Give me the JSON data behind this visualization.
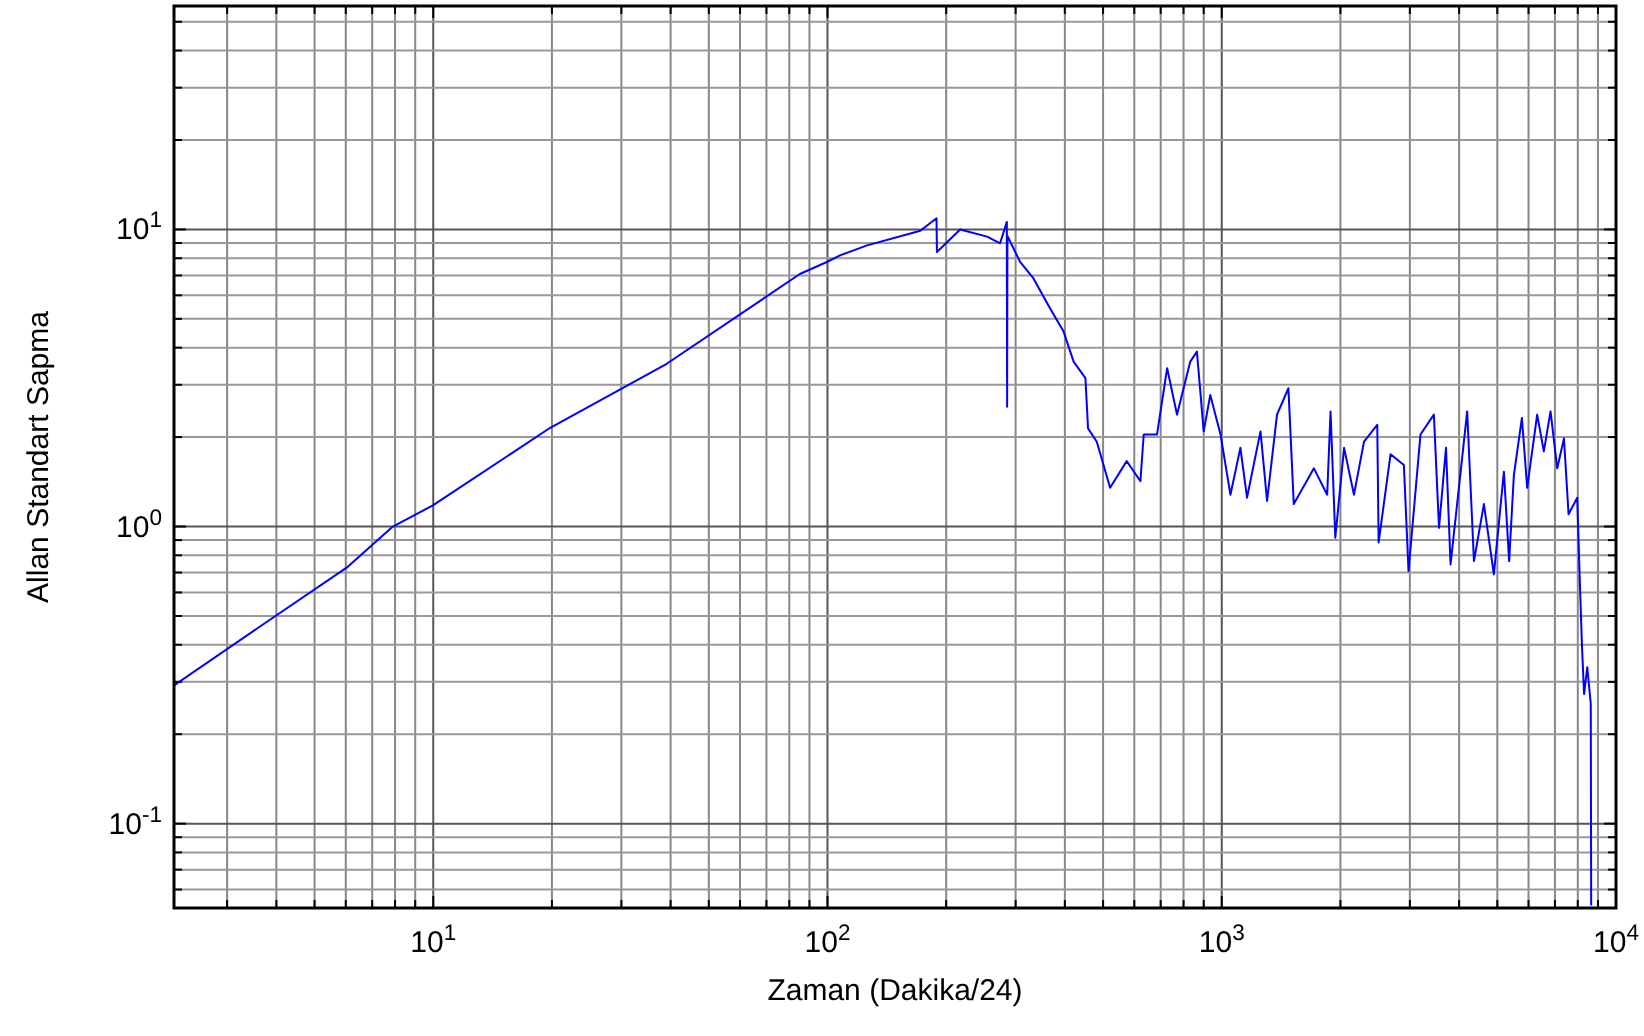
{
  "chart_data": {
    "type": "line",
    "xlabel": "Zaman (Dakika/24)",
    "ylabel": "Allan Standart Sapma",
    "log": "xy",
    "grid": true,
    "marker": "none",
    "line_style": "solid",
    "xlim": [
      2.2,
      10000
    ],
    "ylim": [
      0.052,
      56.5
    ],
    "xticks": [
      {
        "value": 3,
        "label": null
      },
      {
        "value": 4,
        "label": null
      },
      {
        "value": 5,
        "label": null
      },
      {
        "value": 6,
        "label": null
      },
      {
        "value": 7,
        "label": null
      },
      {
        "value": 8,
        "label": null
      },
      {
        "value": 9,
        "label": null
      },
      {
        "value": 10,
        "label": "10$^{1}$"
      },
      {
        "value": 20,
        "label": null
      },
      {
        "value": 30,
        "label": null
      },
      {
        "value": 40,
        "label": null
      },
      {
        "value": 50,
        "label": null
      },
      {
        "value": 60,
        "label": null
      },
      {
        "value": 70,
        "label": null
      },
      {
        "value": 80,
        "label": null
      },
      {
        "value": 90,
        "label": null
      },
      {
        "value": 100,
        "label": "10$^{2}$"
      },
      {
        "value": 200,
        "label": null
      },
      {
        "value": 300,
        "label": null
      },
      {
        "value": 400,
        "label": null
      },
      {
        "value": 500,
        "label": null
      },
      {
        "value": 600,
        "label": null
      },
      {
        "value": 700,
        "label": null
      },
      {
        "value": 800,
        "label": null
      },
      {
        "value": 900,
        "label": null
      },
      {
        "value": 1000,
        "label": "10$^{3}$"
      },
      {
        "value": 2000,
        "label": null
      },
      {
        "value": 3000,
        "label": null
      },
      {
        "value": 4000,
        "label": null
      },
      {
        "value": 5000,
        "label": null
      },
      {
        "value": 6000,
        "label": null
      },
      {
        "value": 7000,
        "label": null
      },
      {
        "value": 8000,
        "label": null
      },
      {
        "value": 9000,
        "label": null
      },
      {
        "value": 10000,
        "label": "10$^{4}$"
      }
    ],
    "yticks": [
      {
        "value": 0.06,
        "label": null
      },
      {
        "value": 0.07,
        "label": null
      },
      {
        "value": 0.08,
        "label": null
      },
      {
        "value": 0.09,
        "label": null
      },
      {
        "value": 0.1,
        "label": "10$^{-1}$"
      },
      {
        "value": 0.2,
        "label": null
      },
      {
        "value": 0.3,
        "label": null
      },
      {
        "value": 0.4,
        "label": null
      },
      {
        "value": 0.5,
        "label": null
      },
      {
        "value": 0.6,
        "label": null
      },
      {
        "value": 0.7,
        "label": null
      },
      {
        "value": 0.8,
        "label": null
      },
      {
        "value": 0.9,
        "label": null
      },
      {
        "value": 1,
        "label": "10$^{0}$"
      },
      {
        "value": 2,
        "label": null
      },
      {
        "value": 3,
        "label": null
      },
      {
        "value": 4,
        "label": null
      },
      {
        "value": 5,
        "label": null
      },
      {
        "value": 6,
        "label": null
      },
      {
        "value": 7,
        "label": null
      },
      {
        "value": 8,
        "label": null
      },
      {
        "value": 9,
        "label": null
      },
      {
        "value": 10,
        "label": "10$^{1}$"
      },
      {
        "value": 20,
        "label": null
      },
      {
        "value": 30,
        "label": null
      },
      {
        "value": 40,
        "label": null
      },
      {
        "value": 50,
        "label": null
      }
    ],
    "series": [
      {
        "color": "#0000ff",
        "x": [
          2.2,
          3.97,
          6.03,
          7.9,
          10,
          19.8,
          39.1,
          85.1,
          99.6,
          107.6,
          126,
          172,
          189,
          189.5,
          217,
          254,
          274,
          285,
          285.5,
          286,
          308,
          333,
          367,
          397,
          421,
          451,
          458,
          482,
          521,
          574,
          622,
          634,
          685,
          727,
          770,
          832,
          865,
          900,
          935,
          993,
          1052,
          1115,
          1159,
          1254,
          1303,
          1381,
          1476,
          1523,
          1713,
          1851,
          1888,
          1941,
          2043,
          2165,
          2295,
          2480,
          2500,
          2680,
          2897,
          2977,
          3192,
          3452,
          3557,
          3705,
          3805,
          4193,
          4362,
          4623,
          4900,
          5196,
          5357,
          5508,
          5772,
          5953,
          6310,
          6561,
          6823,
          7096,
          7379,
          7580,
          7974,
          8070,
          8200,
          8300,
          8455,
          8630,
          8650
        ],
        "values": [
          0.292,
          0.499,
          0.727,
          1,
          1.18,
          2.15,
          3.53,
          7.08,
          7.77,
          8.18,
          8.84,
          9.9,
          10.9,
          8.4,
          10,
          9.46,
          8.98,
          10.6,
          2.53,
          9.5,
          7.78,
          6.84,
          5.42,
          4.53,
          3.59,
          3.16,
          2.14,
          1.93,
          1.35,
          1.66,
          1.42,
          2.04,
          2.04,
          3.41,
          2.38,
          3.59,
          3.88,
          2.09,
          2.77,
          2.04,
          1.28,
          1.84,
          1.25,
          2.09,
          1.22,
          2.38,
          2.92,
          1.19,
          1.57,
          1.28,
          2.44,
          0.917,
          1.84,
          1.28,
          1.93,
          2.2,
          0.884,
          1.75,
          1.61,
          0.708,
          2.04,
          2.38,
          0.99,
          1.84,
          0.745,
          2.44,
          0.765,
          1.19,
          0.69,
          1.53,
          0.765,
          1.49,
          2.32,
          1.35,
          2.38,
          1.79,
          2.44,
          1.57,
          1.98,
          1.1,
          1.25,
          0.745,
          0.392,
          0.273,
          0.336,
          0.253,
          0.053
        ]
      }
    ]
  }
}
